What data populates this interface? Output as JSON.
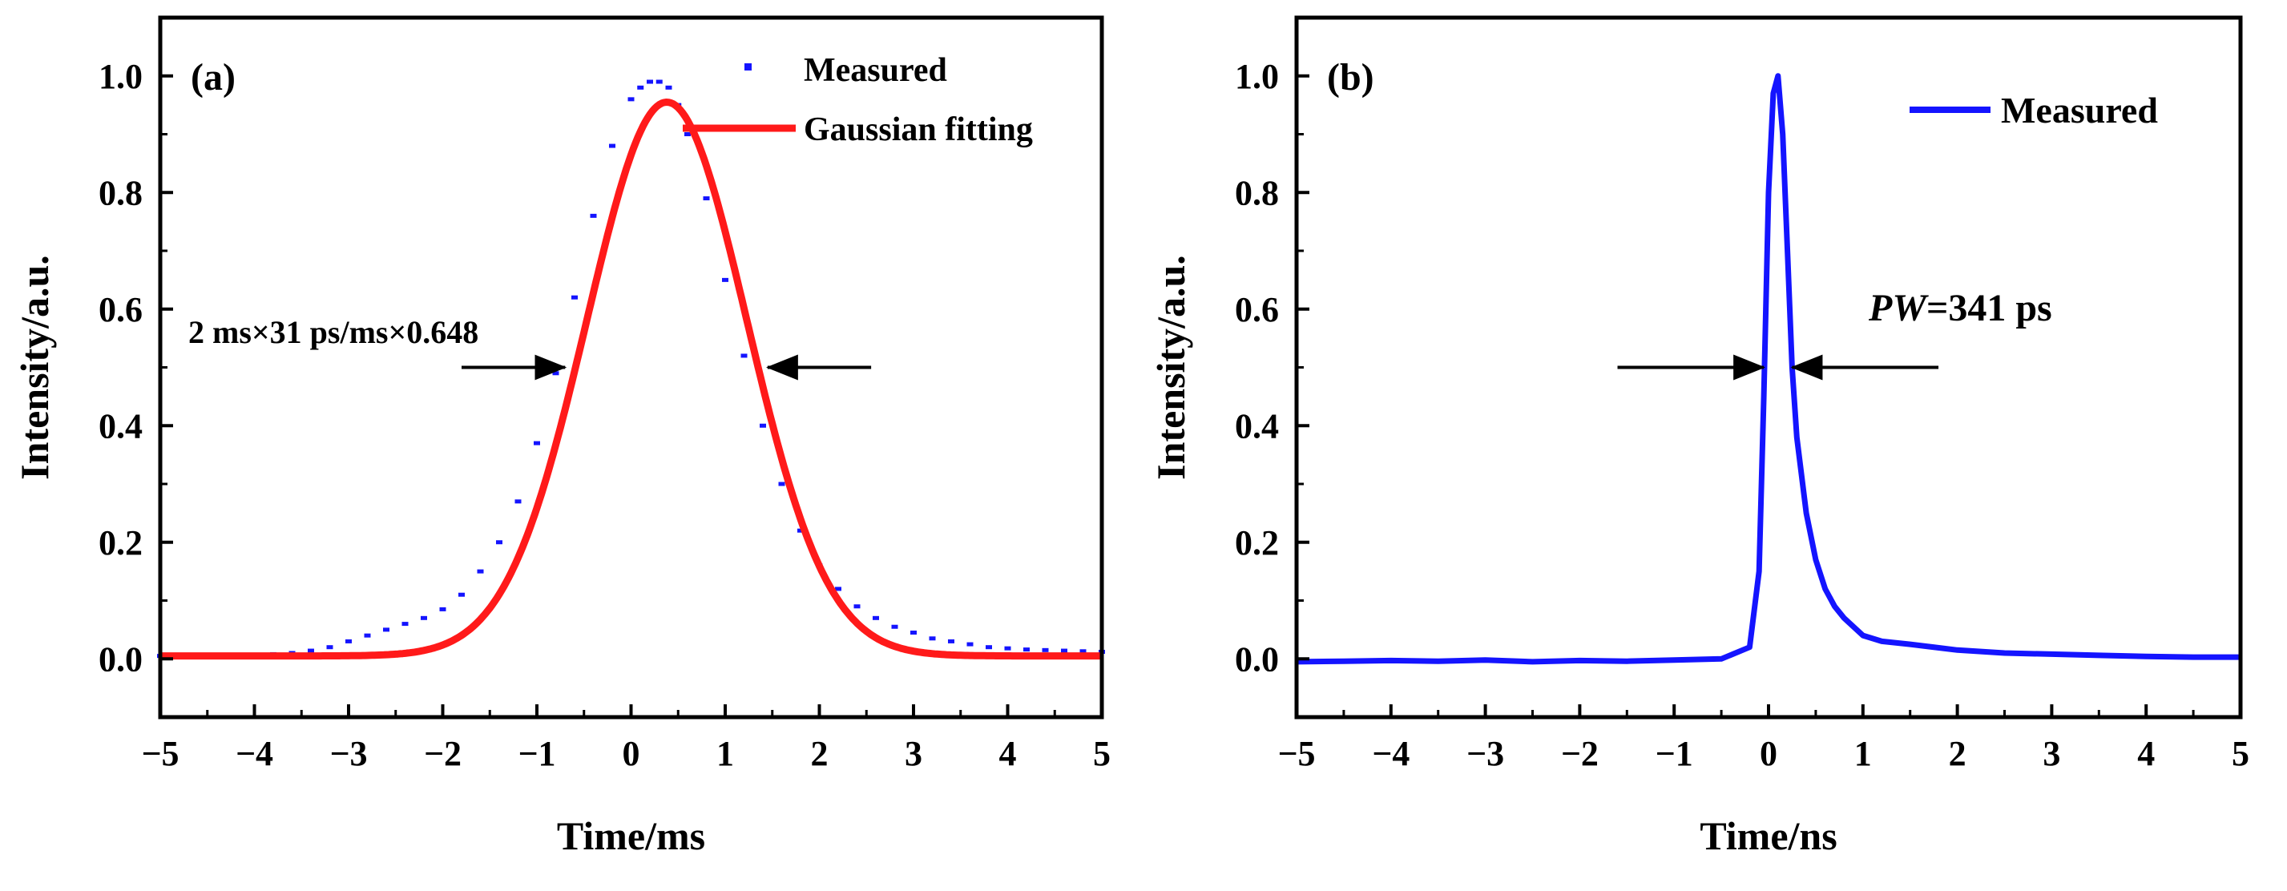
{
  "figure": "two-panel pulse width measurement",
  "chart_data": [
    {
      "id": "a",
      "type": "scatter",
      "panel_label": "(a)",
      "xlabel": "Time/ms",
      "ylabel": "Intensity/a.u.",
      "xlim": [
        -5,
        5
      ],
      "ylim": [
        -0.1,
        1.1
      ],
      "xticks": [
        -5,
        -4,
        -3,
        -2,
        -1,
        0,
        1,
        2,
        3,
        4,
        5
      ],
      "yticks": [
        0.0,
        0.2,
        0.4,
        0.6,
        0.8,
        1.0
      ],
      "xtick_labels": [
        "−5",
        "−4",
        "−3",
        "−2",
        "−1",
        "0",
        "1",
        "2",
        "3",
        "4",
        "5"
      ],
      "ytick_labels": [
        "0.0",
        "0.2",
        "0.4",
        "0.6",
        "0.8",
        "1.0"
      ],
      "legend": [
        {
          "label": "Measured",
          "style": "marker",
          "color": "#1414ff"
        },
        {
          "label": "Gaussian fitting",
          "style": "line",
          "color": "#ff1a1a"
        }
      ],
      "legend_position": "top-right",
      "annotation": {
        "text": "2 ms×31 ps/ms×0.648",
        "y": 0.5,
        "left_arrow": [
          -1.8,
          -0.7
        ],
        "right_arrow": [
          2.55,
          1.45
        ]
      },
      "series": [
        {
          "name": "Measured",
          "kind": "scatter",
          "color": "#1414ff",
          "x": [
            -5.0,
            -4.8,
            -4.6,
            -4.4,
            -4.2,
            -4.0,
            -3.8,
            -3.6,
            -3.4,
            -3.2,
            -3.0,
            -2.8,
            -2.6,
            -2.4,
            -2.2,
            -2.0,
            -1.8,
            -1.6,
            -1.4,
            -1.2,
            -1.0,
            -0.8,
            -0.6,
            -0.4,
            -0.2,
            0.0,
            0.1,
            0.2,
            0.3,
            0.4,
            0.5,
            0.6,
            0.8,
            1.0,
            1.2,
            1.4,
            1.6,
            1.8,
            2.0,
            2.2,
            2.4,
            2.6,
            2.8,
            3.0,
            3.2,
            3.4,
            3.6,
            3.8,
            4.0,
            4.2,
            4.4,
            4.6,
            4.8,
            5.0
          ],
          "y": [
            0.005,
            0.005,
            0.006,
            0.005,
            0.006,
            0.007,
            0.008,
            0.01,
            0.014,
            0.02,
            0.03,
            0.04,
            0.05,
            0.06,
            0.07,
            0.085,
            0.11,
            0.15,
            0.2,
            0.27,
            0.37,
            0.49,
            0.62,
            0.76,
            0.88,
            0.96,
            0.98,
            0.99,
            0.99,
            0.98,
            0.95,
            0.9,
            0.79,
            0.65,
            0.52,
            0.4,
            0.3,
            0.22,
            0.16,
            0.12,
            0.09,
            0.07,
            0.055,
            0.045,
            0.035,
            0.03,
            0.025,
            0.02,
            0.018,
            0.016,
            0.015,
            0.014,
            0.013,
            0.012
          ]
        },
        {
          "name": "Gaussian fitting",
          "kind": "gaussian",
          "color": "#ff1a1a",
          "y0": 0.005,
          "amplitude": 0.95,
          "center": 0.38,
          "fwhm": 2.0
        }
      ]
    },
    {
      "id": "b",
      "type": "line",
      "panel_label": "(b)",
      "xlabel": "Time/ns",
      "ylabel": "Intensity/a.u.",
      "xlim": [
        -5,
        5
      ],
      "ylim": [
        -0.1,
        1.1
      ],
      "xticks": [
        -5,
        -4,
        -3,
        -2,
        -1,
        0,
        1,
        2,
        3,
        4,
        5
      ],
      "yticks": [
        0.0,
        0.2,
        0.4,
        0.6,
        0.8,
        1.0
      ],
      "xtick_labels": [
        "−5",
        "−4",
        "−3",
        "−2",
        "−1",
        "0",
        "1",
        "2",
        "3",
        "4",
        "5"
      ],
      "ytick_labels": [
        "0.0",
        "0.2",
        "0.4",
        "0.6",
        "0.8",
        "1.0"
      ],
      "legend": [
        {
          "label": "Measured",
          "style": "line",
          "color": "#1414ff"
        }
      ],
      "legend_position": "top-right",
      "annotation": {
        "italic": "PW",
        "text": "=341 ps",
        "y": 0.5,
        "left_arrow": [
          -1.6,
          -0.05
        ],
        "right_arrow": [
          1.8,
          0.25
        ]
      },
      "series": [
        {
          "name": "Measured",
          "kind": "line",
          "color": "#1414ff",
          "x": [
            -5.0,
            -4.5,
            -4.0,
            -3.5,
            -3.0,
            -2.5,
            -2.0,
            -1.5,
            -1.0,
            -0.5,
            -0.2,
            -0.1,
            -0.05,
            0.0,
            0.05,
            0.1,
            0.15,
            0.2,
            0.25,
            0.3,
            0.4,
            0.5,
            0.6,
            0.7,
            0.8,
            1.0,
            1.2,
            1.5,
            2.0,
            2.5,
            3.0,
            3.5,
            4.0,
            4.5,
            5.0
          ],
          "y": [
            -0.005,
            -0.004,
            -0.003,
            -0.004,
            -0.002,
            -0.005,
            -0.003,
            -0.004,
            -0.002,
            0.0,
            0.02,
            0.15,
            0.45,
            0.8,
            0.97,
            1.0,
            0.9,
            0.7,
            0.5,
            0.38,
            0.25,
            0.17,
            0.12,
            0.09,
            0.07,
            0.04,
            0.03,
            0.025,
            0.015,
            0.01,
            0.008,
            0.006,
            0.004,
            0.003,
            0.003
          ]
        }
      ]
    }
  ]
}
